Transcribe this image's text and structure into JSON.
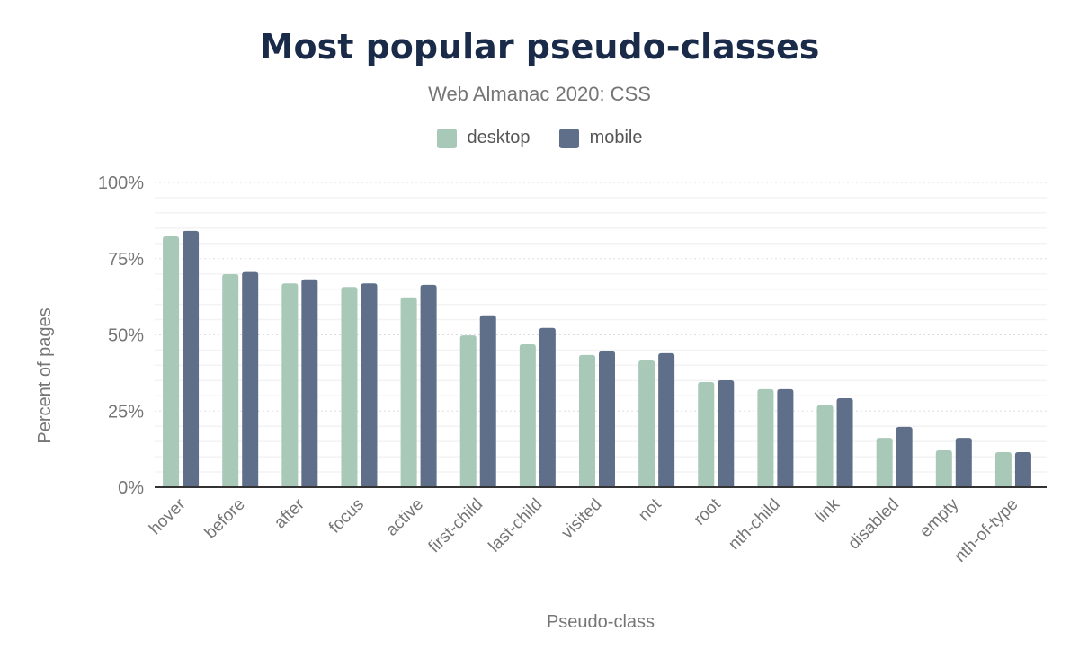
{
  "chart_data": {
    "type": "bar",
    "title": "Most popular pseudo-classes",
    "subtitle": "Web Almanac 2020: CSS",
    "xlabel": "Pseudo-class",
    "ylabel": "Percent of pages",
    "ylim": [
      0,
      100
    ],
    "yticks": [
      "0%",
      "25%",
      "50%",
      "75%",
      "100%"
    ],
    "grid": true,
    "legend_position": "top",
    "categories": [
      "hover",
      "before",
      "after",
      "focus",
      "active",
      "first-child",
      "last-child",
      "visited",
      "not",
      "root",
      "nth-child",
      "link",
      "disabled",
      "empty",
      "nth-of-type"
    ],
    "series": [
      {
        "name": "desktop",
        "color": "#a8c8b8",
        "values": [
          82.3,
          69.9,
          66.9,
          65.7,
          62.3,
          49.8,
          46.9,
          43.4,
          41.6,
          34.5,
          32.2,
          26.9,
          16.2,
          12.1,
          11.5
        ]
      },
      {
        "name": "mobile",
        "color": "#5f6f8a",
        "values": [
          84.1,
          70.6,
          68.2,
          66.9,
          66.4,
          56.4,
          52.3,
          44.6,
          44.0,
          35.1,
          32.2,
          29.2,
          19.8,
          16.2,
          11.5
        ]
      }
    ]
  }
}
